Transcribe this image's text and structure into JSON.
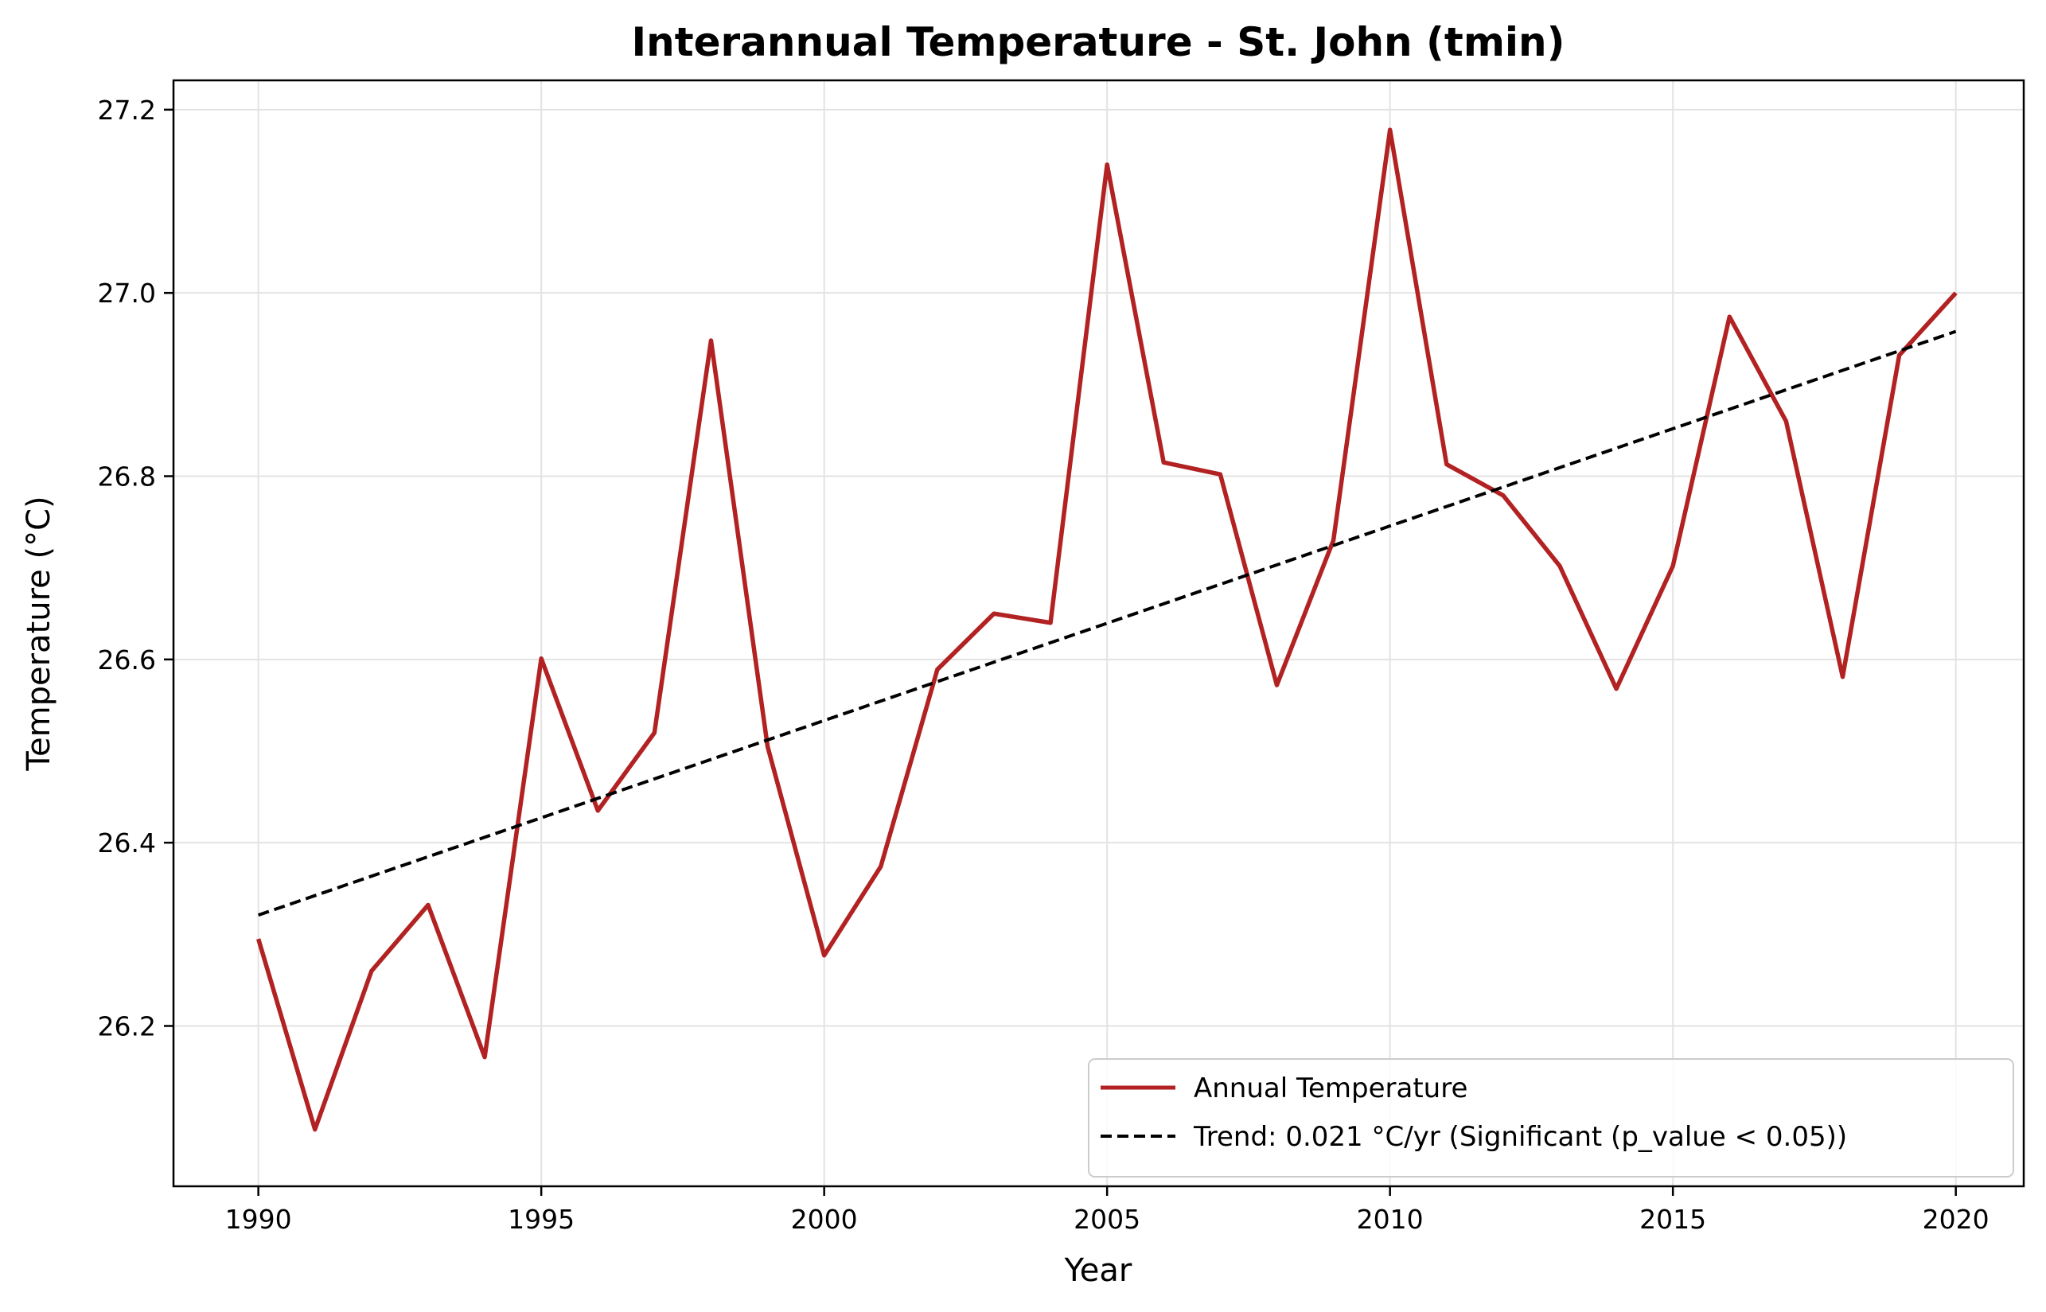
{
  "chart_data": {
    "type": "line",
    "title": "Interannual Temperature - St. John (tmin)",
    "xlabel": "Year",
    "ylabel": "Temperature (°C)",
    "xlim": [
      1988.5,
      2021.2
    ],
    "ylim": [
      26.025,
      27.232
    ],
    "xticks": [
      1990,
      1995,
      2000,
      2005,
      2010,
      2015,
      2020
    ],
    "yticks": [
      26.2,
      26.4,
      26.6,
      26.8,
      27.0,
      27.2
    ],
    "grid": true,
    "legend_position": "lower-right",
    "x": [
      1990,
      1991,
      1992,
      1993,
      1994,
      1995,
      1996,
      1997,
      1998,
      1999,
      2000,
      2001,
      2002,
      2003,
      2004,
      2005,
      2006,
      2007,
      2008,
      2009,
      2010,
      2011,
      2012,
      2013,
      2014,
      2015,
      2016,
      2017,
      2018,
      2019,
      2020
    ],
    "series": [
      {
        "name": "Annual Temperature",
        "color": "#b22222",
        "style": "solid",
        "values": [
          26.295,
          26.087,
          26.26,
          26.332,
          26.166,
          26.601,
          26.435,
          26.52,
          26.948,
          26.505,
          26.277,
          26.374,
          26.589,
          26.65,
          26.64,
          27.14,
          26.815,
          26.802,
          26.572,
          26.73,
          27.178,
          26.813,
          26.779,
          26.702,
          26.568,
          26.702,
          26.974,
          26.86,
          26.581,
          26.932,
          27.0
        ]
      },
      {
        "name": "Trend: 0.021 °C/yr (Significant (p_value < 0.05))",
        "color": "#000000",
        "style": "dashed",
        "values": [
          26.321,
          26.958
        ],
        "x": [
          1990,
          2020
        ]
      }
    ]
  }
}
